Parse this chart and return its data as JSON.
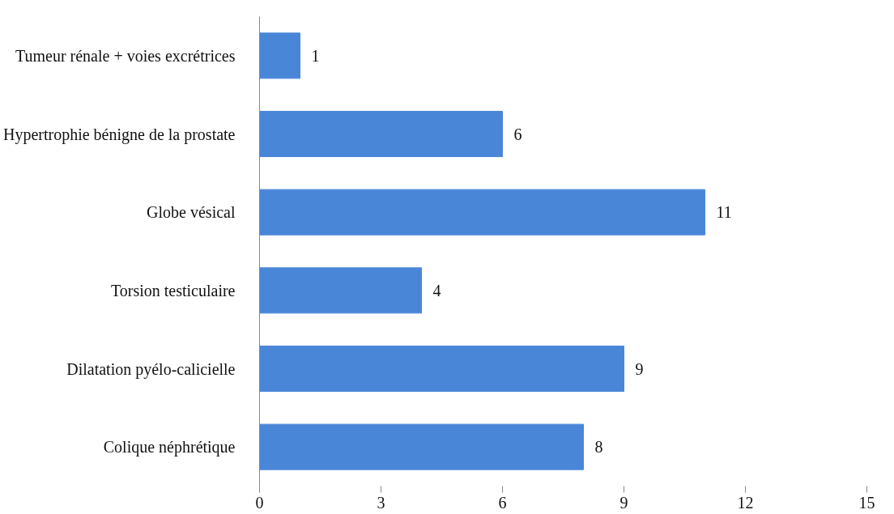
{
  "chart_data": {
    "type": "bar",
    "orientation": "horizontal",
    "categories": [
      "Tumeur rénale + voies excrétrices",
      "Hypertrophie bénigne de la prostate",
      "Globe vésical",
      "Torsion testiculaire",
      "Dilatation pyélo-calicielle",
      "Colique néphrétique"
    ],
    "values": [
      1,
      6,
      11,
      4,
      9,
      8
    ],
    "color": "#4a86d8",
    "xlim": [
      0,
      15
    ],
    "xticks": [
      0,
      3,
      6,
      9,
      12,
      15
    ],
    "grid": false,
    "data_labels": true
  }
}
